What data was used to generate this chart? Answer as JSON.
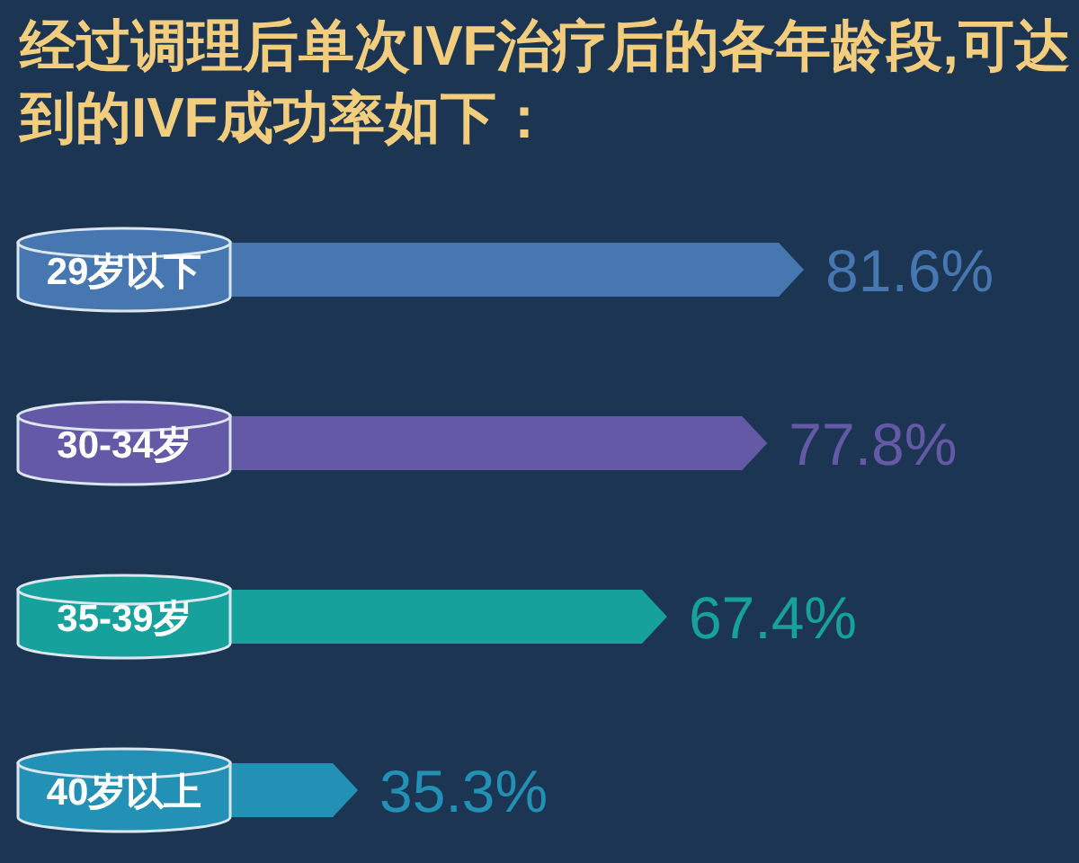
{
  "chart_data": {
    "type": "bar",
    "orientation": "horizontal",
    "title": "经过调理后单次IVF治疗后的各年龄段,可达到的IVF成功率如下：",
    "categories": [
      "29岁以下",
      "30-34岁",
      "35-39岁",
      "40岁以上"
    ],
    "values": [
      81.6,
      77.8,
      67.4,
      35.3
    ],
    "value_labels": [
      "81.6%",
      "77.8%",
      "67.4%",
      "35.3%"
    ],
    "colors": [
      "#4777b0",
      "#6459a6",
      "#17a19c",
      "#2391b5"
    ]
  }
}
